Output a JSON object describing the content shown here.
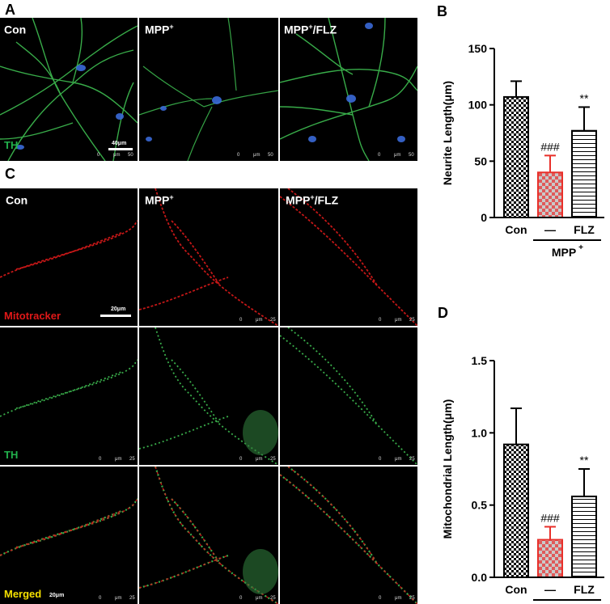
{
  "panels": {
    "a": {
      "letter": "A",
      "images": [
        "Con",
        "MPP",
        "MPP"
      ],
      "image_sup": [
        "",
        "+",
        "+"
      ],
      "image_suffix": [
        "",
        "",
        "/FLZ"
      ],
      "channel": "TH",
      "scale_label": "40μm",
      "axis_ticks": [
        "0",
        "μm",
        "50"
      ]
    },
    "b": {
      "letter": "B"
    },
    "c": {
      "letter": "C",
      "columns": [
        "Con",
        "MPP",
        "MPP"
      ],
      "column_sup": [
        "",
        "+",
        "+"
      ],
      "column_suffix": [
        "",
        "",
        "/FLZ"
      ],
      "rows": [
        "Mitotracker",
        "TH",
        "Merged"
      ],
      "row_colors": [
        "#e01818",
        "#22b14c",
        "#f5e000"
      ],
      "scale_label_top": "20μm",
      "scale_label_bottom": "20μm",
      "axis_ticks": [
        "0",
        "μm",
        "25"
      ]
    },
    "d": {
      "letter": "D"
    }
  },
  "colors": {
    "red_fill": "#e05a5a",
    "red_edge": "#e8302a",
    "mito_red": "#d81a1a",
    "th_green": "#3fbf52"
  },
  "chart_data": [
    {
      "type": "bar",
      "ylabel": "Neurite Length(μm)",
      "categories": [
        "Con",
        "—",
        "FLZ"
      ],
      "group_label": "MPP",
      "group_label_sup": "+",
      "values": [
        107,
        40,
        77
      ],
      "errors": [
        14,
        15,
        21
      ],
      "annotations": [
        "",
        "###",
        "**"
      ],
      "patterns": [
        "checker",
        "checker-red",
        "hlines"
      ],
      "ylim": [
        0,
        150
      ],
      "yticks": [
        0,
        50,
        100,
        150
      ]
    },
    {
      "type": "bar",
      "ylabel": "Mitochondrial Length(μm)",
      "categories": [
        "Con",
        "—",
        "FLZ"
      ],
      "group_label": "MPP",
      "group_label_sup": "+",
      "values": [
        0.92,
        0.26,
        0.56
      ],
      "errors": [
        0.25,
        0.09,
        0.19
      ],
      "annotations": [
        "",
        "###",
        "**"
      ],
      "patterns": [
        "checker",
        "checker-red",
        "hlines"
      ],
      "ylim": [
        0,
        1.5
      ],
      "yticks": [
        "0.0",
        "0.5",
        "1.0",
        "1.5"
      ]
    }
  ]
}
